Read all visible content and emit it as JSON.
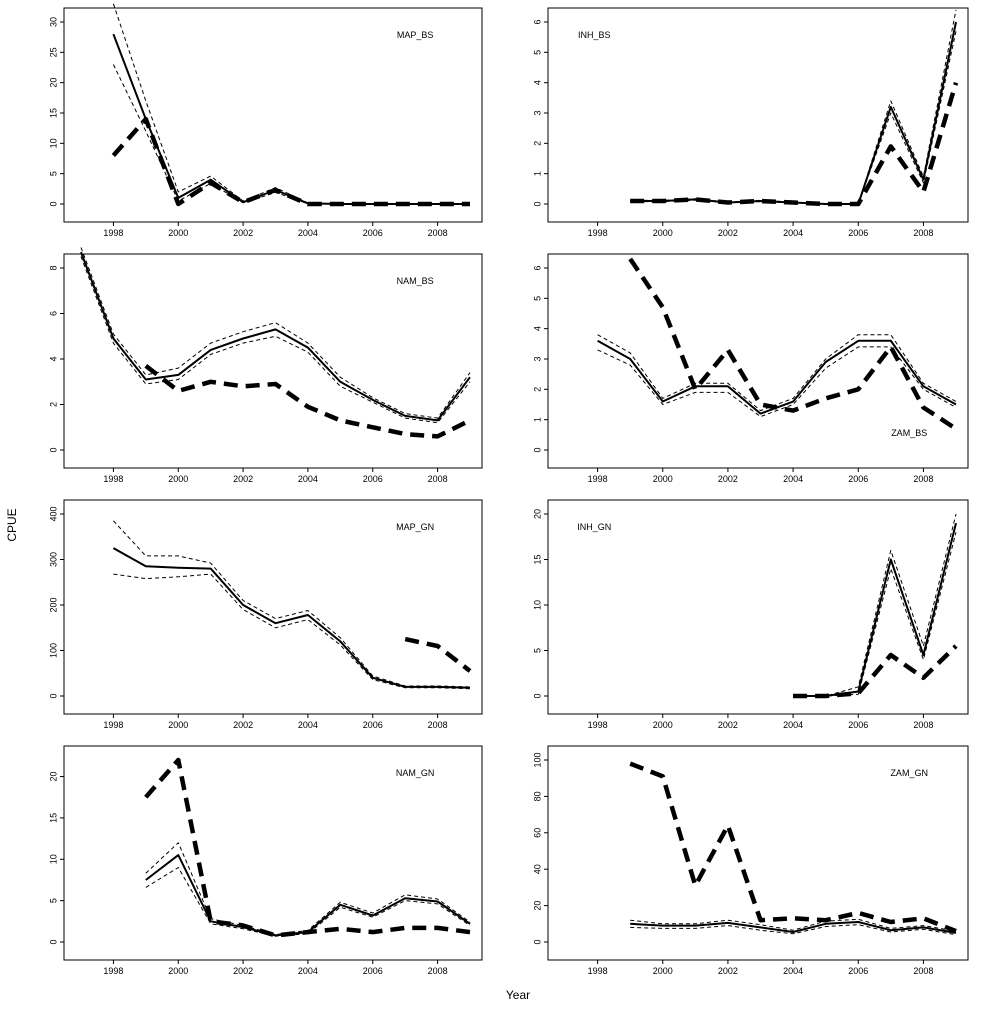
{
  "figure": {
    "xlabel": "Year",
    "ylabel": "CPUE"
  },
  "chart_data": [
    {
      "type": "line",
      "panel_label": "MAP_BS",
      "xlim": [
        1997,
        2009
      ],
      "ylim": [
        0,
        30
      ],
      "x_ticks": [
        1998,
        2000,
        2002,
        2004,
        2006,
        2008
      ],
      "y_ticks": [
        0,
        5,
        10,
        15,
        20,
        25,
        30
      ],
      "series": [
        {
          "style": "solid",
          "x": [
            1998,
            1999,
            2000,
            2001,
            2002,
            2003,
            2004,
            2005,
            2006,
            2007,
            2008,
            2009
          ],
          "values": [
            28,
            14,
            1,
            4,
            0.3,
            2.3,
            0.1,
            0,
            0,
            0,
            0,
            0
          ]
        },
        {
          "style": "dashed-thin",
          "x": [
            1998,
            1999,
            2000,
            2001,
            2002,
            2003,
            2004,
            2005,
            2006,
            2007,
            2008,
            2009
          ],
          "values": [
            33,
            17,
            2,
            4.6,
            0.5,
            2.7,
            0.2,
            0,
            0,
            0,
            0,
            0
          ]
        },
        {
          "style": "dashed-thin",
          "x": [
            1998,
            1999,
            2000,
            2001,
            2002,
            2003,
            2004,
            2005,
            2006,
            2007,
            2008,
            2009
          ],
          "values": [
            23,
            12,
            0.5,
            3.4,
            0.2,
            1.9,
            0.05,
            0,
            0,
            0,
            0,
            0
          ]
        },
        {
          "style": "dashed-thick",
          "x": [
            1998,
            1999,
            2000,
            2001,
            2002,
            2003,
            2004,
            2005,
            2006,
            2007,
            2008,
            2009
          ],
          "values": [
            8,
            14,
            0,
            3.5,
            0.3,
            2.3,
            0,
            0,
            0,
            0,
            0,
            0
          ]
        }
      ]
    },
    {
      "type": "line",
      "panel_label": "INH_BS",
      "xlim": [
        1997,
        2009
      ],
      "ylim": [
        0,
        6
      ],
      "x_ticks": [
        1998,
        2000,
        2002,
        2004,
        2006,
        2008
      ],
      "y_ticks": [
        0,
        1,
        2,
        3,
        4,
        5,
        6
      ],
      "series": [
        {
          "style": "solid",
          "x": [
            1999,
            2000,
            2001,
            2002,
            2003,
            2004,
            2005,
            2006,
            2007,
            2008,
            2009
          ],
          "values": [
            0.1,
            0.1,
            0.15,
            0.05,
            0.1,
            0.05,
            0,
            0,
            3.2,
            0.8,
            6
          ]
        },
        {
          "style": "dashed-thin",
          "x": [
            1999,
            2000,
            2001,
            2002,
            2003,
            2004,
            2005,
            2006,
            2007,
            2008,
            2009
          ],
          "values": [
            0.12,
            0.12,
            0.17,
            0.06,
            0.12,
            0.06,
            0,
            0,
            3.4,
            0.9,
            6.4
          ]
        },
        {
          "style": "dashed-thin",
          "x": [
            1999,
            2000,
            2001,
            2002,
            2003,
            2004,
            2005,
            2006,
            2007,
            2008,
            2009
          ],
          "values": [
            0.08,
            0.08,
            0.13,
            0.04,
            0.08,
            0.04,
            0,
            0,
            3.0,
            0.7,
            5.7
          ]
        },
        {
          "style": "dashed-thick",
          "x": [
            1999,
            2000,
            2001,
            2002,
            2003,
            2004,
            2005,
            2006,
            2007,
            2008,
            2009
          ],
          "values": [
            0.1,
            0.1,
            0.15,
            0.05,
            0.1,
            0.05,
            0,
            0,
            1.9,
            0.4,
            4
          ]
        }
      ]
    },
    {
      "type": "line",
      "panel_label": "NAM_BS",
      "xlim": [
        1997,
        2009
      ],
      "ylim": [
        0,
        8
      ],
      "x_ticks": [
        1998,
        2000,
        2002,
        2004,
        2006,
        2008
      ],
      "y_ticks": [
        0,
        2,
        4,
        6,
        8
      ],
      "series": [
        {
          "style": "solid",
          "x": [
            1997,
            1998,
            1999,
            2000,
            2001,
            2002,
            2003,
            2004,
            2005,
            2006,
            2007,
            2008,
            2009
          ],
          "values": [
            8.7,
            4.9,
            3.1,
            3.3,
            4.4,
            4.9,
            5.3,
            4.5,
            3.0,
            2.2,
            1.5,
            1.3,
            3.2
          ]
        },
        {
          "style": "dashed-thin",
          "x": [
            1997,
            1998,
            1999,
            2000,
            2001,
            2002,
            2003,
            2004,
            2005,
            2006,
            2007,
            2008,
            2009
          ],
          "values": [
            8.9,
            5.1,
            3.3,
            3.6,
            4.7,
            5.2,
            5.6,
            4.7,
            3.2,
            2.3,
            1.6,
            1.4,
            3.4
          ]
        },
        {
          "style": "dashed-thin",
          "x": [
            1997,
            1998,
            1999,
            2000,
            2001,
            2002,
            2003,
            2004,
            2005,
            2006,
            2007,
            2008,
            2009
          ],
          "values": [
            8.5,
            4.7,
            2.9,
            3.1,
            4.2,
            4.7,
            5.0,
            4.3,
            2.8,
            2.1,
            1.4,
            1.2,
            3.0
          ]
        },
        {
          "style": "dashed-thick",
          "x": [
            1999,
            2000,
            2001,
            2002,
            2003,
            2004,
            2005,
            2006,
            2007,
            2008,
            2009
          ],
          "values": [
            3.7,
            2.6,
            3.0,
            2.8,
            2.9,
            1.9,
            1.3,
            1.0,
            0.7,
            0.6,
            1.3
          ]
        }
      ]
    },
    {
      "type": "line",
      "panel_label": "ZAM_BS",
      "xlim": [
        1997,
        2009
      ],
      "ylim": [
        0,
        6
      ],
      "x_ticks": [
        1998,
        2000,
        2002,
        2004,
        2006,
        2008
      ],
      "y_ticks": [
        0,
        1,
        2,
        3,
        4,
        5,
        6
      ],
      "series": [
        {
          "style": "solid",
          "x": [
            1998,
            1999,
            2000,
            2001,
            2002,
            2003,
            2004,
            2005,
            2006,
            2007,
            2008,
            2009
          ],
          "values": [
            3.6,
            3.0,
            1.6,
            2.1,
            2.1,
            1.2,
            1.6,
            2.9,
            3.6,
            3.6,
            2.1,
            1.5
          ]
        },
        {
          "style": "dashed-thin",
          "x": [
            1998,
            1999,
            2000,
            2001,
            2002,
            2003,
            2004,
            2005,
            2006,
            2007,
            2008,
            2009
          ],
          "values": [
            3.8,
            3.2,
            1.7,
            2.2,
            2.2,
            1.3,
            1.7,
            3.0,
            3.8,
            3.8,
            2.2,
            1.6
          ]
        },
        {
          "style": "dashed-thin",
          "x": [
            1998,
            1999,
            2000,
            2001,
            2002,
            2003,
            2004,
            2005,
            2006,
            2007,
            2008,
            2009
          ],
          "values": [
            3.3,
            2.8,
            1.5,
            1.9,
            1.9,
            1.1,
            1.5,
            2.7,
            3.4,
            3.4,
            2.0,
            1.4
          ]
        },
        {
          "style": "dashed-thick",
          "x": [
            1999,
            2000,
            2001,
            2002,
            2003,
            2004,
            2005,
            2006,
            2007,
            2008,
            2009
          ],
          "values": [
            6.3,
            4.7,
            2.0,
            3.3,
            1.5,
            1.3,
            1.7,
            2.0,
            3.4,
            1.4,
            0.7
          ]
        }
      ]
    },
    {
      "type": "line",
      "panel_label": "MAP_GN",
      "xlim": [
        1997,
        2009
      ],
      "ylim": [
        0,
        400
      ],
      "x_ticks": [
        1998,
        2000,
        2002,
        2004,
        2006,
        2008
      ],
      "y_ticks": [
        0,
        100,
        200,
        300,
        400
      ],
      "series": [
        {
          "style": "solid",
          "x": [
            1998,
            1999,
            2000,
            2001,
            2002,
            2003,
            2004,
            2005,
            2006,
            2007,
            2008,
            2009
          ],
          "values": [
            325,
            285,
            282,
            280,
            200,
            160,
            178,
            120,
            40,
            20,
            20,
            18
          ]
        },
        {
          "style": "dashed-thin",
          "x": [
            1998,
            1999,
            2000,
            2001,
            2002,
            2003,
            2004,
            2005,
            2006,
            2007,
            2008,
            2009
          ],
          "values": [
            385,
            308,
            308,
            292,
            210,
            170,
            188,
            128,
            44,
            22,
            22,
            20
          ]
        },
        {
          "style": "dashed-thin",
          "x": [
            1998,
            1999,
            2000,
            2001,
            2002,
            2003,
            2004,
            2005,
            2006,
            2007,
            2008,
            2009
          ],
          "values": [
            268,
            258,
            262,
            268,
            190,
            150,
            168,
            112,
            36,
            18,
            18,
            16
          ]
        },
        {
          "style": "dashed-thick",
          "x": [
            2007,
            2008,
            2009
          ],
          "values": [
            125,
            110,
            55
          ]
        }
      ]
    },
    {
      "type": "line",
      "panel_label": "INH_GN",
      "xlim": [
        1997,
        2009
      ],
      "ylim": [
        0,
        20
      ],
      "x_ticks": [
        1998,
        2000,
        2002,
        2004,
        2006,
        2008
      ],
      "y_ticks": [
        0,
        5,
        10,
        15,
        20
      ],
      "series": [
        {
          "style": "solid",
          "x": [
            2004,
            2005,
            2006,
            2007,
            2008,
            2009
          ],
          "values": [
            0,
            0,
            0.5,
            15,
            4.5,
            19
          ]
        },
        {
          "style": "dashed-thin",
          "x": [
            2004,
            2005,
            2006,
            2007,
            2008,
            2009
          ],
          "values": [
            0,
            0,
            1,
            16,
            5.5,
            20
          ]
        },
        {
          "style": "dashed-thin",
          "x": [
            2004,
            2005,
            2006,
            2007,
            2008,
            2009
          ],
          "values": [
            0,
            0,
            0.2,
            14,
            4,
            18
          ]
        },
        {
          "style": "dashed-thick",
          "x": [
            2004,
            2005,
            2006,
            2007,
            2008,
            2009
          ],
          "values": [
            0,
            0,
            0.3,
            4.5,
            2,
            5.5
          ]
        }
      ]
    },
    {
      "type": "line",
      "panel_label": "NAM_GN",
      "xlim": [
        1997,
        2009
      ],
      "ylim": [
        0,
        22
      ],
      "x_ticks": [
        1998,
        2000,
        2002,
        2004,
        2006,
        2008
      ],
      "y_ticks": [
        0,
        5,
        10,
        15,
        20
      ],
      "series": [
        {
          "style": "solid",
          "x": [
            1999,
            2000,
            2001,
            2002,
            2003,
            2004,
            2005,
            2006,
            2007,
            2008,
            2009
          ],
          "values": [
            7.5,
            10.5,
            2.5,
            1.8,
            0.8,
            1.2,
            4.5,
            3.2,
            5.3,
            4.9,
            2.2
          ]
        },
        {
          "style": "dashed-thin",
          "x": [
            1999,
            2000,
            2001,
            2002,
            2003,
            2004,
            2005,
            2006,
            2007,
            2008,
            2009
          ],
          "values": [
            8.3,
            12,
            2.8,
            2.0,
            0.9,
            1.4,
            4.8,
            3.5,
            5.7,
            5.2,
            2.4
          ]
        },
        {
          "style": "dashed-thin",
          "x": [
            1999,
            2000,
            2001,
            2002,
            2003,
            2004,
            2005,
            2006,
            2007,
            2008,
            2009
          ],
          "values": [
            6.6,
            9,
            2.2,
            1.6,
            0.7,
            1.0,
            4.2,
            3.0,
            5.0,
            4.6,
            2.0
          ]
        },
        {
          "style": "dashed-thick",
          "x": [
            1999,
            2000,
            2001,
            2002,
            2003,
            2004,
            2005,
            2006,
            2007,
            2008,
            2009
          ],
          "values": [
            17.5,
            22,
            2.5,
            2.0,
            0.8,
            1.2,
            1.6,
            1.2,
            1.7,
            1.7,
            1.2
          ]
        }
      ]
    },
    {
      "type": "line",
      "panel_label": "ZAM_GN",
      "xlim": [
        1997,
        2009
      ],
      "ylim": [
        0,
        100
      ],
      "x_ticks": [
        1998,
        2000,
        2002,
        2004,
        2006,
        2008
      ],
      "y_ticks": [
        0,
        20,
        40,
        60,
        80,
        100
      ],
      "series": [
        {
          "style": "solid",
          "x": [
            1999,
            2000,
            2001,
            2002,
            2003,
            2004,
            2005,
            2006,
            2007,
            2008,
            2009
          ],
          "values": [
            10,
            9,
            9,
            10.5,
            8,
            5.5,
            10,
            11,
            6.5,
            8,
            5
          ]
        },
        {
          "style": "dashed-thin",
          "x": [
            1999,
            2000,
            2001,
            2002,
            2003,
            2004,
            2005,
            2006,
            2007,
            2008,
            2009
          ],
          "values": [
            12,
            10,
            10,
            12,
            9.5,
            6.5,
            11.5,
            12.5,
            7.5,
            9,
            6
          ]
        },
        {
          "style": "dashed-thin",
          "x": [
            1999,
            2000,
            2001,
            2002,
            2003,
            2004,
            2005,
            2006,
            2007,
            2008,
            2009
          ],
          "values": [
            8,
            7.5,
            7.5,
            9,
            6.5,
            4.5,
            8.5,
            9.5,
            5.5,
            7,
            4
          ]
        },
        {
          "style": "dashed-thick",
          "x": [
            1999,
            2000,
            2001,
            2002,
            2003,
            2004,
            2005,
            2006,
            2007,
            2008,
            2009
          ],
          "values": [
            98,
            91,
            31,
            64,
            12,
            13,
            12,
            16,
            11,
            13,
            6
          ]
        }
      ]
    }
  ]
}
